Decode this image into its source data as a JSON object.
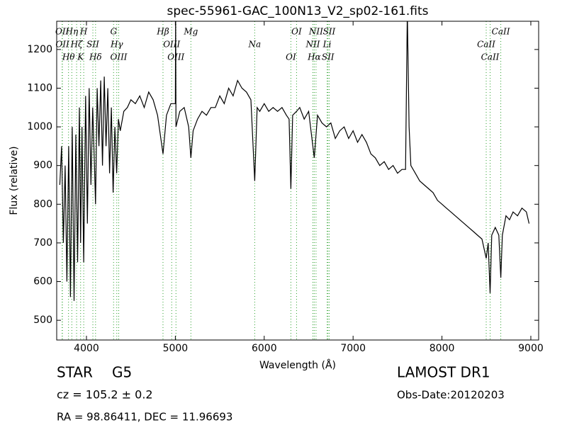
{
  "chart_data": {
    "type": "line",
    "title": "spec-55961-GAC_100N13_V2_sp02-161.fits",
    "x_label": "Wavelength (Å)",
    "y_label": "Flux (relative)",
    "color": "#000000",
    "line_color": "#2ca02c",
    "xlim": [
      3665,
      9088
    ],
    "ylim": [
      449,
      1273
    ],
    "xticks": [
      4000,
      5000,
      6000,
      7000,
      8000,
      9000
    ],
    "yticks": [
      500,
      600,
      700,
      800,
      900,
      1000,
      1100,
      1200
    ],
    "x": [
      3700,
      3720,
      3740,
      3760,
      3780,
      3800,
      3820,
      3840,
      3860,
      3880,
      3900,
      3920,
      3934,
      3950,
      3969,
      3990,
      4010,
      4030,
      4050,
      4070,
      4090,
      4102,
      4120,
      4140,
      4160,
      4180,
      4200,
      4220,
      4240,
      4260,
      4280,
      4300,
      4320,
      4340,
      4360,
      4380,
      4420,
      4460,
      4500,
      4550,
      4600,
      4650,
      4700,
      4750,
      4800,
      4861,
      4900,
      4950,
      5000,
      5003,
      5007,
      5050,
      5100,
      5150,
      5175,
      5200,
      5250,
      5300,
      5350,
      5400,
      5450,
      5500,
      5550,
      5600,
      5650,
      5700,
      5750,
      5800,
      5850,
      5893,
      5920,
      5950,
      6000,
      6050,
      6100,
      6150,
      6200,
      6250,
      6280,
      6300,
      6320,
      6364,
      6400,
      6450,
      6500,
      6563,
      6600,
      6650,
      6700,
      6750,
      6800,
      6850,
      6900,
      6950,
      7000,
      7050,
      7100,
      7150,
      7200,
      7250,
      7300,
      7350,
      7400,
      7450,
      7500,
      7550,
      7590,
      7610,
      7630,
      7650,
      7700,
      7750,
      7800,
      7850,
      7900,
      7950,
      8000,
      8050,
      8100,
      8150,
      8200,
      8250,
      8300,
      8350,
      8400,
      8450,
      8498,
      8520,
      8542,
      8560,
      8600,
      8640,
      8662,
      8680,
      8720,
      8760,
      8800,
      8850,
      8900,
      8950,
      8980
    ],
    "values": [
      850,
      950,
      700,
      900,
      600,
      950,
      560,
      1000,
      550,
      980,
      650,
      1050,
      700,
      1000,
      650,
      1080,
      750,
      1100,
      850,
      1050,
      900,
      800,
      1100,
      950,
      1120,
      900,
      1130,
      950,
      1100,
      880,
      1050,
      830,
      1000,
      880,
      1020,
      990,
      1040,
      1050,
      1070,
      1060,
      1080,
      1050,
      1090,
      1070,
      1030,
      930,
      1030,
      1060,
      1060,
      1300,
      1000,
      1040,
      1050,
      1000,
      920,
      990,
      1020,
      1040,
      1030,
      1050,
      1050,
      1080,
      1060,
      1100,
      1080,
      1120,
      1100,
      1090,
      1070,
      860,
      1050,
      1040,
      1060,
      1040,
      1050,
      1040,
      1050,
      1030,
      1020,
      840,
      1030,
      1040,
      1050,
      1020,
      1040,
      920,
      1030,
      1010,
      1000,
      1010,
      970,
      990,
      1000,
      970,
      990,
      960,
      980,
      960,
      930,
      920,
      900,
      910,
      890,
      900,
      880,
      890,
      890,
      1300,
      1000,
      900,
      880,
      860,
      850,
      840,
      830,
      810,
      800,
      790,
      780,
      770,
      760,
      750,
      740,
      730,
      720,
      710,
      660,
      700,
      570,
      720,
      740,
      720,
      610,
      720,
      770,
      760,
      780,
      770,
      790,
      780,
      750
    ],
    "lines": [
      {
        "label": "OII",
        "wavelength": 3726
      },
      {
        "label": "OII",
        "wavelength": 3729
      },
      {
        "label": "Hθ",
        "wavelength": 3798
      },
      {
        "label": "Hη",
        "wavelength": 3835
      },
      {
        "label": "Hζ",
        "wavelength": 3889
      },
      {
        "label": "K",
        "wavelength": 3934
      },
      {
        "label": "H",
        "wavelength": 3969
      },
      {
        "label": "SII",
        "wavelength": 4072
      },
      {
        "label": "Hδ",
        "wavelength": 4102
      },
      {
        "label": "G",
        "wavelength": 4305
      },
      {
        "label": "Hγ",
        "wavelength": 4341
      },
      {
        "label": "OIII",
        "wavelength": 4363
      },
      {
        "label": "Hβ",
        "wavelength": 4861
      },
      {
        "label": "OIII",
        "wavelength": 4959
      },
      {
        "label": "OIII",
        "wavelength": 5007
      },
      {
        "label": "Mg",
        "wavelength": 5175
      },
      {
        "label": "Na",
        "wavelength": 5893
      },
      {
        "label": "OI",
        "wavelength": 6300
      },
      {
        "label": "OI",
        "wavelength": 6364
      },
      {
        "label": "NII",
        "wavelength": 6548
      },
      {
        "label": "Hα",
        "wavelength": 6563
      },
      {
        "label": "NII",
        "wavelength": 6583
      },
      {
        "label": "Li",
        "wavelength": 6708
      },
      {
        "label": "SII",
        "wavelength": 6717
      },
      {
        "label": "SII",
        "wavelength": 6731
      },
      {
        "label": "CaII",
        "wavelength": 8498
      },
      {
        "label": "CaII",
        "wavelength": 8542
      },
      {
        "label": "CaII",
        "wavelength": 8662
      }
    ],
    "object_class": "STAR",
    "subclass": "G5",
    "redshift": "cz = 105.2 ± 0.2",
    "coords": "RA = 98.86411, DEC = 11.96693",
    "survey": "LAMOST DR1",
    "obs_date": "Obs-Date:20120203"
  }
}
